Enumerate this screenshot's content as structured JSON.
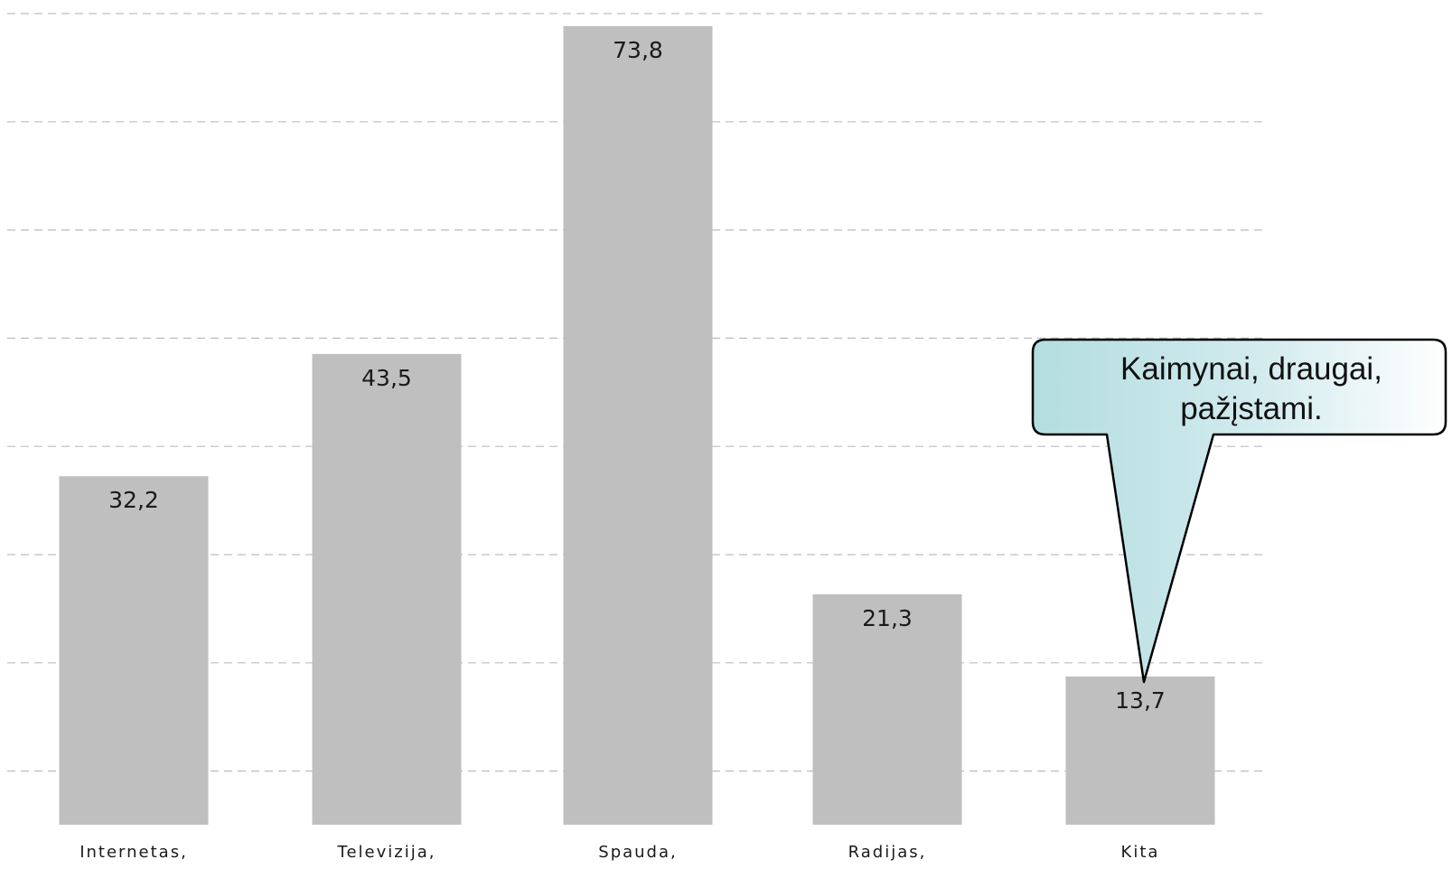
{
  "chart_data": {
    "type": "bar",
    "categories": [
      "Internetas,",
      "Televizija,",
      "Spauda,",
      "Radijas,",
      "Kita"
    ],
    "values": [
      32.2,
      43.5,
      73.8,
      21.3,
      13.7
    ],
    "value_labels": [
      "32,2",
      "43,5",
      "73,8",
      "21,3",
      "13,7"
    ],
    "ylim": [
      0,
      75
    ],
    "grid": true,
    "bar_color": "#bfbfbf",
    "grid_color": "#bdbdbd",
    "annotation": {
      "lines": [
        "Kaimynai, draugai,",
        "pažįstami."
      ],
      "target_category": "Kita",
      "fill_color_start": "#b3dde0",
      "fill_color_end": "#ffffff"
    }
  }
}
